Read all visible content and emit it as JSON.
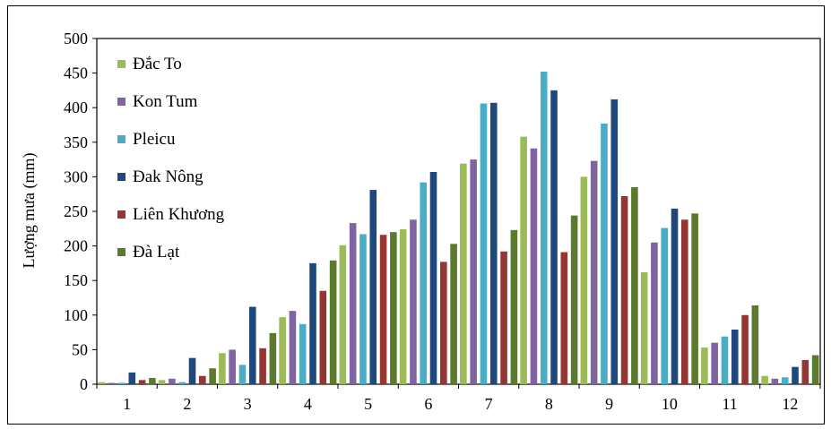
{
  "chart_data": {
    "type": "bar",
    "ylabel": "Lượng mưa (mm)",
    "xlabel": "",
    "ylim": [
      0,
      500
    ],
    "yticks": [
      0,
      50,
      100,
      150,
      200,
      250,
      300,
      350,
      400,
      450,
      500
    ],
    "categories": [
      "1",
      "2",
      "3",
      "4",
      "5",
      "6",
      "7",
      "8",
      "9",
      "10",
      "11",
      "12"
    ],
    "legend_position": "top-left",
    "grid": false,
    "series": [
      {
        "name": "Đắc To",
        "color": "#9BBB59",
        "values": [
          3,
          6,
          45,
          97,
          201,
          224,
          319,
          358,
          300,
          162,
          53,
          12
        ]
      },
      {
        "name": "Kon Tum",
        "color": "#8064A2",
        "values": [
          2,
          8,
          50,
          106,
          233,
          238,
          325,
          341,
          323,
          205,
          60,
          8
        ]
      },
      {
        "name": "Pleicu",
        "color": "#4BACC6",
        "values": [
          2,
          3,
          28,
          87,
          217,
          292,
          406,
          452,
          377,
          226,
          69,
          10
        ]
      },
      {
        "name": "Đak Nông",
        "color": "#1F497D",
        "values": [
          17,
          38,
          112,
          175,
          281,
          307,
          407,
          425,
          412,
          254,
          79,
          25
        ]
      },
      {
        "name": "Liên Khương",
        "color": "#943634",
        "values": [
          6,
          12,
          52,
          135,
          216,
          177,
          192,
          191,
          272,
          238,
          100,
          35
        ]
      },
      {
        "name": "Đà Lạt",
        "color": "#5C7A2E",
        "values": [
          9,
          23,
          74,
          179,
          220,
          203,
          223,
          244,
          285,
          247,
          114,
          42
        ]
      }
    ]
  }
}
